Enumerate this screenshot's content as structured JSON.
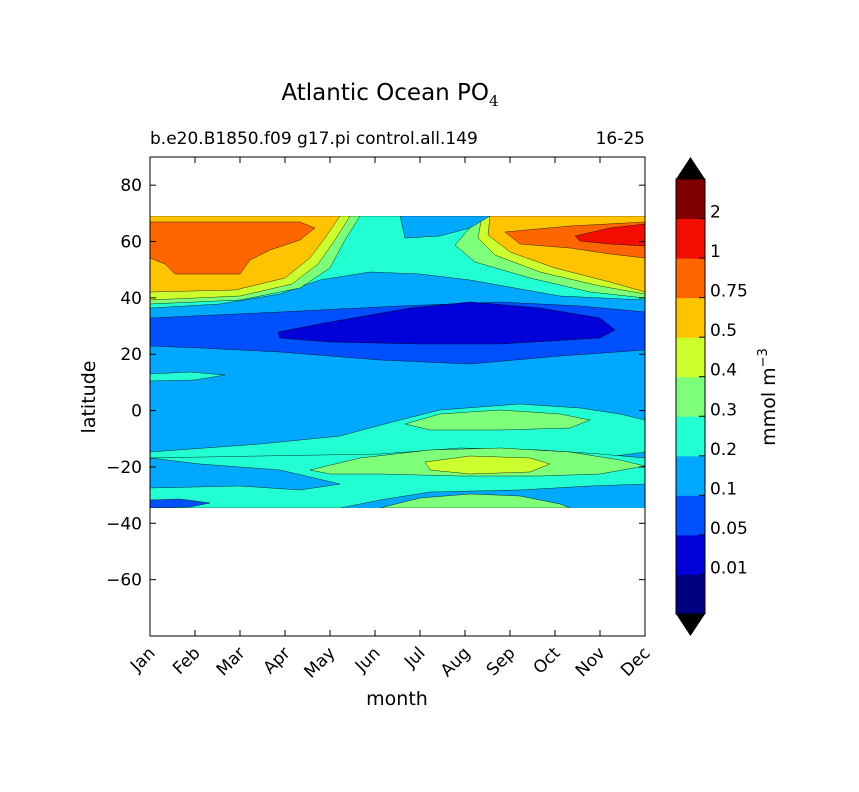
{
  "chart_data": {
    "type": "heatmap",
    "title": "Atlantic Ocean PO",
    "title_subscript": "4",
    "subtitle_left": "b.e20.B1850.f09 g17.pi control.all.149",
    "subtitle_right": "16-25",
    "xlabel": "month",
    "ylabel": "latitude",
    "x_categories": [
      "Jan",
      "Feb",
      "Mar",
      "Apr",
      "May",
      "Jun",
      "Jul",
      "Aug",
      "Sep",
      "Oct",
      "Nov",
      "Dec"
    ],
    "y_ticks": [
      80,
      60,
      40,
      20,
      0,
      -20,
      -40,
      -60
    ],
    "ylim": [
      -80,
      90
    ],
    "data_lat_range": [
      -34,
      68
    ],
    "colorbar": {
      "label": "mmol m",
      "label_superscript": "−3",
      "tick_labels": [
        "0.01",
        "0.05",
        "0.1",
        "0.2",
        "0.3",
        "0.4",
        "0.5",
        "0.75",
        "1",
        "2"
      ],
      "levels": [
        0.01,
        0.05,
        0.1,
        0.2,
        0.3,
        0.4,
        0.5,
        0.75,
        1,
        2
      ],
      "colors": [
        "#000080",
        "#0000d8",
        "#0050ff",
        "#00a8ff",
        "#22ffd2",
        "#7dff7a",
        "#ccff2e",
        "#ffc400",
        "#ff6600",
        "#f20d00",
        "#800000"
      ],
      "extend": "both"
    },
    "field_samples": {
      "latitudes": [
        68,
        60,
        50,
        40,
        30,
        20,
        10,
        0,
        -10,
        -20,
        -30,
        -34
      ],
      "months": [
        "Jan",
        "Apr",
        "Jul",
        "Oct",
        "Dec"
      ],
      "values": [
        [
          0.6,
          0.6,
          0.15,
          0.6,
          0.6
        ],
        [
          0.8,
          0.8,
          0.25,
          0.6,
          0.8
        ],
        [
          0.8,
          0.6,
          0.22,
          0.4,
          0.6
        ],
        [
          0.35,
          0.3,
          0.15,
          0.2,
          0.4
        ],
        [
          0.08,
          0.03,
          0.02,
          0.03,
          0.08
        ],
        [
          0.12,
          0.12,
          0.08,
          0.1,
          0.12
        ],
        [
          0.15,
          0.15,
          0.15,
          0.15,
          0.15
        ],
        [
          0.15,
          0.15,
          0.25,
          0.25,
          0.15
        ],
        [
          0.15,
          0.15,
          0.2,
          0.2,
          0.2
        ],
        [
          0.3,
          0.3,
          0.35,
          0.45,
          0.3
        ],
        [
          0.15,
          0.25,
          0.3,
          0.3,
          0.15
        ],
        [
          0.15,
          0.2,
          0.25,
          0.2,
          0.15
        ]
      ]
    }
  }
}
